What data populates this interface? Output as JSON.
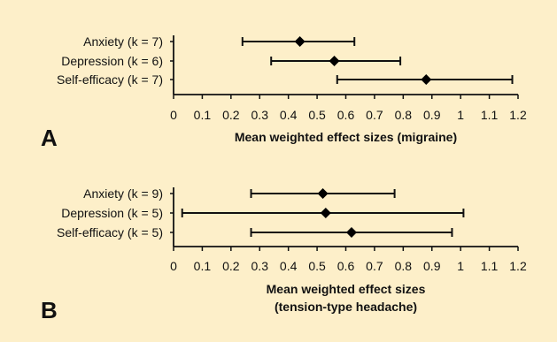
{
  "chart_data": [
    {
      "type": "forest",
      "panel_label": "A",
      "xlabel": "Mean weighted effect sizes (migraine)",
      "xlim": [
        0,
        1.2
      ],
      "ticks": [
        "0",
        "0.1",
        "0.2",
        "0.3",
        "0.4",
        "0.5",
        "0.6",
        "0.7",
        "0.8",
        "0.9",
        "1",
        "1.1",
        "1.2"
      ],
      "rows": [
        {
          "label": "Anxiety (k = 7)",
          "estimate": 0.44,
          "ci_low": 0.24,
          "ci_high": 0.63
        },
        {
          "label": "Depression (k = 6)",
          "estimate": 0.56,
          "ci_low": 0.34,
          "ci_high": 0.79
        },
        {
          "label": "Self-efficacy (k = 7)",
          "estimate": 0.88,
          "ci_low": 0.57,
          "ci_high": 1.18
        }
      ]
    },
    {
      "type": "forest",
      "panel_label": "B",
      "xlabel": "Mean weighted effect sizes",
      "xlabel2": "(tension-type headache)",
      "xlim": [
        0,
        1.2
      ],
      "ticks": [
        "0",
        "0.1",
        "0.2",
        "0.3",
        "0.4",
        "0.5",
        "0.6",
        "0.7",
        "0.8",
        "0.9",
        "1",
        "1.1",
        "1.2"
      ],
      "rows": [
        {
          "label": "Anxiety (k = 9)",
          "estimate": 0.52,
          "ci_low": 0.27,
          "ci_high": 0.77
        },
        {
          "label": "Depression (k = 5)",
          "estimate": 0.53,
          "ci_low": 0.03,
          "ci_high": 1.01
        },
        {
          "label": "Self-efficacy (k = 5)",
          "estimate": 0.62,
          "ci_low": 0.27,
          "ci_high": 0.97
        }
      ]
    }
  ]
}
